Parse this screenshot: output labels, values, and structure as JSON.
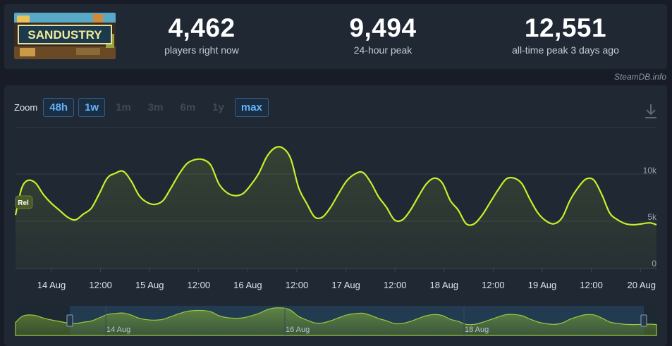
{
  "header": {
    "thumbnail_title": "SANDUSTRY",
    "stats": [
      {
        "value": "4,462",
        "label": "players right now"
      },
      {
        "value": "9,494",
        "label": "24-hour peak"
      },
      {
        "value": "12,551",
        "label": "all-time peak 3 days ago"
      }
    ]
  },
  "credit": "SteamDB.info",
  "zoom": {
    "label": "Zoom",
    "buttons": [
      {
        "label": "48h",
        "active": true
      },
      {
        "label": "1w",
        "active": true
      },
      {
        "label": "1m",
        "active": false
      },
      {
        "label": "3m",
        "active": false
      },
      {
        "label": "6m",
        "active": false
      },
      {
        "label": "1y",
        "active": false
      },
      {
        "label": "max",
        "active": true
      }
    ]
  },
  "icons": {
    "download": "download-icon"
  },
  "colors": {
    "series": "#c8ef2a",
    "accent": "#62b4ff",
    "background": "#171c26",
    "panel": "#202834"
  },
  "chart_data": {
    "type": "area",
    "series": [
      {
        "name": "Rel",
        "x_hours": [
          0,
          1.5,
          3,
          5,
          7,
          9,
          11,
          13,
          15,
          17,
          19,
          21,
          23,
          25,
          27,
          29,
          31,
          33,
          35,
          37,
          39,
          41,
          43,
          45,
          47,
          49,
          51,
          53,
          55,
          57,
          59,
          61,
          63,
          65,
          67,
          69,
          71,
          73,
          75,
          77,
          79,
          81,
          83,
          85,
          87,
          89,
          91,
          93,
          95,
          97,
          99,
          101,
          103,
          105,
          107,
          109,
          111,
          113,
          115,
          117,
          119,
          121,
          123,
          125,
          127,
          129,
          131,
          133,
          135,
          137,
          139,
          141,
          143,
          145,
          147,
          149,
          151,
          153,
          155,
          157,
          159,
          160.7
        ],
        "values": [
          5500,
          8200,
          9050,
          8800,
          7600,
          6700,
          6000,
          5300,
          5000,
          5600,
          6200,
          7700,
          9300,
          9800,
          10000,
          9000,
          7500,
          6800,
          6600,
          7000,
          8300,
          9700,
          10800,
          11200,
          11200,
          10600,
          8700,
          7800,
          7500,
          7700,
          8600,
          9800,
          11500,
          12400,
          12400,
          11300,
          8300,
          6700,
          5300,
          5300,
          6300,
          7700,
          9000,
          9700,
          9900,
          8900,
          7400,
          6300,
          5000,
          5000,
          6000,
          7400,
          8700,
          9300,
          8800,
          7000,
          6000,
          4600,
          4600,
          5500,
          6800,
          8100,
          9200,
          9300,
          8700,
          7100,
          5700,
          4900,
          4600,
          5200,
          7000,
          8300,
          9200,
          9100,
          7600,
          5700,
          5000,
          4600,
          4500,
          4600,
          4700,
          4500
        ]
      }
    ],
    "x_tick_labels": [
      "14 Aug",
      "12:00",
      "15 Aug",
      "12:00",
      "16 Aug",
      "12:00",
      "17 Aug",
      "12:00",
      "18 Aug",
      "12:00",
      "19 Aug",
      "12:00",
      "20 Aug"
    ],
    "y_tick_labels": [
      "10k",
      "5k",
      "0"
    ],
    "ylim": [
      0,
      13000
    ],
    "navigator_labels": [
      "14 Aug",
      "16 Aug",
      "18 Aug"
    ],
    "marker_label": "Rel",
    "grid": true
  }
}
